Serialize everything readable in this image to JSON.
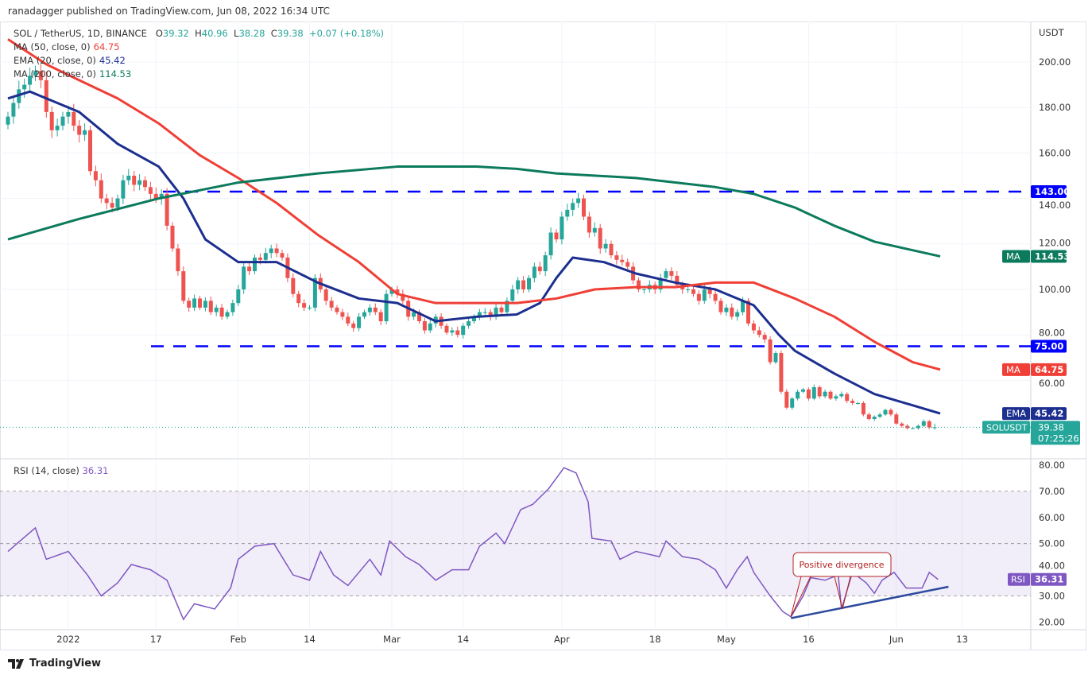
{
  "header": {
    "published": "ranadagger published on TradingView.com, Jun 08, 2022 16:34 UTC"
  },
  "legend": {
    "symbol": "SOL / TetherUS, 1D, BINANCE",
    "o_label": "O",
    "o": "39.32",
    "h_label": "H",
    "h": "40.96",
    "l_label": "L",
    "l": "38.28",
    "c_label": "C",
    "c": "39.38",
    "change": "+0.07 (+0.18%)",
    "ma50_label": "MA (50, close, 0)",
    "ma50": "64.75",
    "ema20_label": "EMA (20, close, 0)",
    "ema20": "45.42",
    "ma200_label": "MA (200, close, 0)",
    "ma200": "114.53"
  },
  "rsi_legend": {
    "label": "RSI (14, close)",
    "value": "36.31"
  },
  "footer": {
    "brand": "TradingView"
  },
  "colors": {
    "up": "#26a69a",
    "down": "#ef5350",
    "ema": "#1c2f8f",
    "ma50": "#ef3f36",
    "ma200": "#0c7a5c",
    "rsi": "#7e57c2",
    "level": "#0000ff"
  },
  "chart_data": {
    "type": "candlestick",
    "title": "SOL / TetherUS, 1D, BINANCE",
    "start_date": "2021-12-21",
    "end_date": "2022-06-08",
    "price_axis": {
      "unit": "USDT",
      "ticks": [
        60,
        80,
        100,
        120,
        140,
        160,
        180,
        200
      ],
      "ylim": [
        30,
        212
      ]
    },
    "time_ticks": [
      {
        "day": 11,
        "label": "2022"
      },
      {
        "day": 27,
        "label": "17"
      },
      {
        "day": 42,
        "label": "Feb"
      },
      {
        "day": 55,
        "label": "14"
      },
      {
        "day": 70,
        "label": "Mar"
      },
      {
        "day": 83,
        "label": "14"
      },
      {
        "day": 101,
        "label": "Apr"
      },
      {
        "day": 118,
        "label": "18"
      },
      {
        "day": 131,
        "label": "May"
      },
      {
        "day": 146,
        "label": "16"
      },
      {
        "day": 162,
        "label": "Jun"
      },
      {
        "day": 174,
        "label": "13"
      }
    ],
    "closes": [
      176,
      182,
      188,
      190,
      194,
      196,
      192,
      178,
      170,
      172,
      176,
      178,
      172,
      168,
      170,
      152,
      148,
      140,
      138,
      136,
      140,
      148,
      150,
      146,
      148,
      145,
      142,
      140,
      142,
      128,
      118,
      108,
      95,
      92,
      96,
      92,
      95,
      90,
      92,
      88,
      90,
      94,
      100,
      110,
      108,
      114,
      113,
      116,
      118,
      116,
      114,
      105,
      98,
      94,
      92,
      92,
      105,
      100,
      95,
      92,
      90,
      88,
      85,
      83,
      88,
      90,
      92,
      90,
      86,
      98,
      100,
      98,
      95,
      88,
      90,
      86,
      82,
      85,
      88,
      84,
      81,
      82,
      80,
      84,
      86,
      88,
      90,
      90,
      88,
      92,
      90,
      95,
      100,
      104,
      100,
      105,
      110,
      108,
      115,
      125,
      122,
      132,
      135,
      138,
      140,
      132,
      125,
      127,
      118,
      120,
      115,
      113,
      112,
      110,
      104,
      100,
      100,
      102,
      100,
      105,
      108,
      106,
      102,
      100,
      100,
      98,
      95,
      100,
      98,
      95,
      90,
      92,
      88,
      90,
      95,
      85,
      82,
      80,
      78,
      68,
      72,
      55,
      48,
      52,
      55,
      56,
      52,
      57,
      53,
      55,
      52,
      53,
      54,
      51,
      50,
      50,
      45,
      43,
      44,
      45,
      47,
      45,
      41,
      40,
      39,
      39,
      40,
      42,
      39.32,
      39.38
    ],
    "last": {
      "open": 39.32,
      "high": 40.96,
      "low": 38.28,
      "close": 39.38
    },
    "levels": [
      {
        "value": 143,
        "label": "143.00"
      },
      {
        "value": 75,
        "label": "75.00"
      }
    ],
    "series": [
      {
        "name": "EMA (20)",
        "tag": "EMA",
        "value_label": "45.42",
        "points": [
          [
            0,
            184
          ],
          [
            4,
            187
          ],
          [
            13,
            178
          ],
          [
            20,
            164
          ],
          [
            27.5,
            154
          ],
          [
            32,
            140
          ],
          [
            36,
            122
          ],
          [
            42,
            112
          ],
          [
            49,
            112
          ],
          [
            56.5,
            103
          ],
          [
            64,
            96
          ],
          [
            71,
            94
          ],
          [
            78,
            86
          ],
          [
            85.5,
            88
          ],
          [
            92.8,
            89
          ],
          [
            97,
            94
          ],
          [
            100,
            105
          ],
          [
            103,
            114
          ],
          [
            108.7,
            112
          ],
          [
            114.5,
            107
          ],
          [
            121.7,
            103
          ],
          [
            129,
            100
          ],
          [
            136,
            93
          ],
          [
            140.6,
            80
          ],
          [
            143.5,
            73
          ],
          [
            150.7,
            63
          ],
          [
            158,
            54
          ],
          [
            165,
            49
          ],
          [
            170,
            45.42
          ]
        ]
      },
      {
        "name": "MA (50)",
        "tag": "MA",
        "value_label": "64.75",
        "points": [
          [
            0,
            210
          ],
          [
            7,
            199
          ],
          [
            13,
            192
          ],
          [
            20,
            184
          ],
          [
            27.5,
            173
          ],
          [
            35,
            159
          ],
          [
            42,
            149
          ],
          [
            49,
            138
          ],
          [
            56.5,
            124
          ],
          [
            64,
            112
          ],
          [
            71,
            98
          ],
          [
            78,
            94
          ],
          [
            85.5,
            94
          ],
          [
            92.8,
            94
          ],
          [
            100,
            96
          ],
          [
            107,
            100
          ],
          [
            114.5,
            101
          ],
          [
            121.7,
            101
          ],
          [
            129,
            103
          ],
          [
            136,
            103
          ],
          [
            143.5,
            96
          ],
          [
            150.7,
            88
          ],
          [
            158,
            77
          ],
          [
            165,
            68
          ],
          [
            170,
            64.75
          ]
        ]
      },
      {
        "name": "MA (200)",
        "tag": "MA",
        "value_label": "114.53",
        "points": [
          [
            0,
            122
          ],
          [
            13,
            131
          ],
          [
            27.5,
            140
          ],
          [
            42,
            147
          ],
          [
            56.5,
            151
          ],
          [
            71,
            154
          ],
          [
            85.5,
            154
          ],
          [
            92.8,
            153
          ],
          [
            100,
            151
          ],
          [
            114.5,
            149
          ],
          [
            129,
            145
          ],
          [
            136,
            142
          ],
          [
            143.5,
            136
          ],
          [
            150.7,
            128
          ],
          [
            158,
            121
          ],
          [
            170,
            114.53
          ]
        ]
      }
    ],
    "rsi": {
      "name": "RSI (14, close)",
      "value_label": "36.31",
      "ticks": [
        20,
        30,
        40,
        50,
        60,
        70,
        80
      ],
      "band": [
        30,
        70
      ],
      "points": [
        [
          0,
          47
        ],
        [
          2.2,
          51
        ],
        [
          5,
          56
        ],
        [
          7,
          44
        ],
        [
          11,
          47
        ],
        [
          14.5,
          38
        ],
        [
          17,
          30
        ],
        [
          20,
          35
        ],
        [
          22.5,
          42
        ],
        [
          26,
          40
        ],
        [
          29,
          36
        ],
        [
          32,
          21
        ],
        [
          34,
          27
        ],
        [
          37.7,
          25
        ],
        [
          40.6,
          33
        ],
        [
          42,
          44
        ],
        [
          45,
          49
        ],
        [
          48.5,
          50
        ],
        [
          52,
          38
        ],
        [
          55,
          36
        ],
        [
          57,
          47
        ],
        [
          59.4,
          38
        ],
        [
          62,
          34
        ],
        [
          66,
          44
        ],
        [
          68,
          38
        ],
        [
          69.6,
          51
        ],
        [
          72.5,
          45
        ],
        [
          75,
          42
        ],
        [
          78,
          36
        ],
        [
          81,
          40
        ],
        [
          84,
          40
        ],
        [
          86,
          49
        ],
        [
          89,
          54
        ],
        [
          90.6,
          50
        ],
        [
          93.5,
          63
        ],
        [
          95.7,
          65
        ],
        [
          98.6,
          71
        ],
        [
          101.4,
          79
        ],
        [
          103.6,
          77
        ],
        [
          105.8,
          66
        ],
        [
          106.5,
          52
        ],
        [
          110,
          51
        ],
        [
          111.6,
          44
        ],
        [
          114.5,
          47
        ],
        [
          118.8,
          45
        ],
        [
          120,
          51
        ],
        [
          123,
          45
        ],
        [
          126,
          44
        ],
        [
          129,
          40
        ],
        [
          131,
          33
        ],
        [
          133,
          40
        ],
        [
          134.8,
          45
        ],
        [
          136,
          39
        ],
        [
          139,
          30
        ],
        [
          141.3,
          24
        ],
        [
          142.8,
          22
        ],
        [
          145,
          30
        ],
        [
          146.4,
          37
        ],
        [
          149,
          36
        ],
        [
          151.4,
          38
        ],
        [
          152,
          25
        ],
        [
          154,
          39
        ],
        [
          156.5,
          35
        ],
        [
          158,
          31
        ],
        [
          159.4,
          36
        ],
        [
          161.6,
          39
        ],
        [
          163.8,
          33
        ],
        [
          166.7,
          33
        ],
        [
          168,
          39
        ],
        [
          169.6,
          36.31
        ]
      ],
      "trendline": [
        [
          142.8,
          21.5
        ],
        [
          171.5,
          33.5
        ]
      ],
      "annotation": "Positive divergence"
    },
    "tags": {
      "symbol": "SOLUSDT",
      "price": "39.38",
      "countdown": "07:25:26",
      "rsi": "RSI"
    }
  }
}
